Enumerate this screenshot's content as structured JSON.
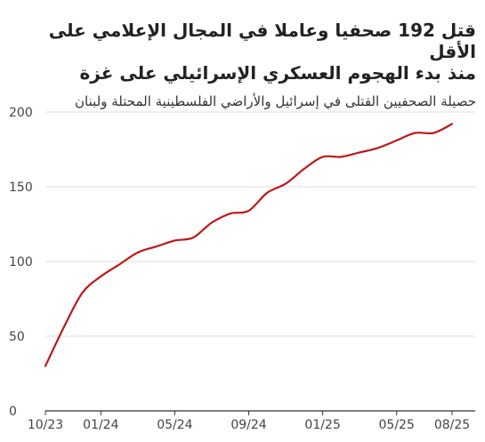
{
  "header": {
    "title_line1": "قتل 192 صحفيا وعاملا في المجال الإعلامي على الأقل",
    "title_line2": "منذ بدء الهجوم العسكري الإسرائيلي على غزة",
    "subtitle": "حصيلة الصحفيين القتلى في إسرائيل والأراضي الفلسطينية المحتلة ولبنان"
  },
  "chart_data": {
    "type": "line",
    "title": "قتل 192 صحفيا وعاملا في المجال الإعلامي على الأقل منذ بدء الهجوم العسكري الإسرائيلي على غزة",
    "subtitle": "حصيلة الصحفيين القتلى في إسرائيل والأراضي الفلسطينية المحتلة ولبنان",
    "xlabel": "",
    "ylabel": "",
    "x_ticks": [
      "10/23",
      "01/24",
      "05/24",
      "09/24",
      "01/25",
      "05/25",
      "08/25"
    ],
    "y_ticks": [
      0,
      50,
      100,
      150,
      200
    ],
    "ylim": [
      0,
      200
    ],
    "xlim": [
      "2023-10",
      "2025-08"
    ],
    "grid": "horizontal",
    "legend": "none",
    "line_color": "#bb1919",
    "series": [
      {
        "name": "",
        "points": [
          {
            "x": "2023-10",
            "y": 30
          },
          {
            "x": "2023-11",
            "y": 56
          },
          {
            "x": "2023-12",
            "y": 79
          },
          {
            "x": "2024-01",
            "y": 90
          },
          {
            "x": "2024-02",
            "y": 98
          },
          {
            "x": "2024-03",
            "y": 106
          },
          {
            "x": "2024-04",
            "y": 110
          },
          {
            "x": "2024-05",
            "y": 114
          },
          {
            "x": "2024-06",
            "y": 116
          },
          {
            "x": "2024-07",
            "y": 126
          },
          {
            "x": "2024-08",
            "y": 132
          },
          {
            "x": "2024-09",
            "y": 134
          },
          {
            "x": "2024-10",
            "y": 146
          },
          {
            "x": "2024-11",
            "y": 152
          },
          {
            "x": "2024-12",
            "y": 162
          },
          {
            "x": "2025-01",
            "y": 170
          },
          {
            "x": "2025-02",
            "y": 170
          },
          {
            "x": "2025-03",
            "y": 173
          },
          {
            "x": "2025-04",
            "y": 176
          },
          {
            "x": "2025-05",
            "y": 181
          },
          {
            "x": "2025-06",
            "y": 186
          },
          {
            "x": "2025-07",
            "y": 186
          },
          {
            "x": "2025-08",
            "y": 192
          }
        ]
      }
    ]
  }
}
